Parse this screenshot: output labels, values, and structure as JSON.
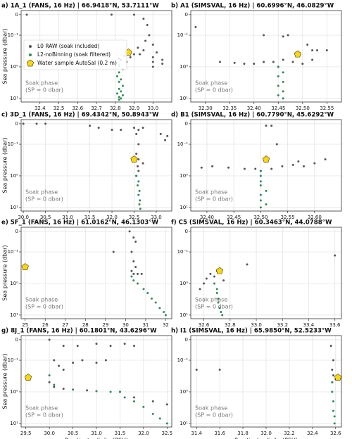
{
  "chart_data": [
    {
      "type": "scatter",
      "title": "a) 1A_1 (FANS, 16 Hz) | 66.9418°N, 53.7111°W",
      "ylabel": "Sea pressure (dbar)",
      "annotation": [
        "Soak phase",
        "(SP = 0 dbar)"
      ],
      "legend": "upper left",
      "yscale": "symlog",
      "linthresh": 0.1,
      "y_inverted": true,
      "grid": true,
      "xlim": [
        32.3,
        33.1
      ],
      "xticks": [
        32.4,
        32.5,
        32.6,
        32.7,
        32.8,
        32.9,
        {
          "value": 33,
          "label": "33.0"
        }
      ],
      "ylim": [
        -0.02,
        13
      ],
      "yticks": [
        0,
        {
          "value": 0.1,
          "label": "10⁻¹"
        },
        {
          "value": 1,
          "label": "10⁰"
        },
        {
          "value": 10,
          "label": "10¹"
        }
      ],
      "series": [
        {
          "name": "L0 RAW (soak included)",
          "color": "#555555",
          "marker": "circle",
          "x": [
            32.33,
            32.78,
            32.9,
            32.95,
            32.97,
            32.98,
            32.96,
            33.0,
            32.92,
            32.95,
            33.02,
            32.9,
            33.0,
            32.85,
            33.05,
            32.82,
            33.0,
            33.05,
            32.93,
            32.88,
            33.0,
            32.86
          ],
          "values": [
            0,
            0,
            0,
            0.02,
            0.05,
            0.1,
            0.15,
            0.2,
            0.25,
            0.3,
            0.35,
            0.4,
            0.5,
            0.45,
            0.6,
            0.55,
            1.0,
            0.8,
            0.4,
            0.5,
            0.7,
            0.7
          ]
        },
        {
          "name": "L2-noBinning (soak filtered)",
          "color": "#2e8b57",
          "marker": "circle",
          "x": [
            32.83,
            32.82,
            32.84,
            32.82,
            32.81,
            32.83,
            32.82,
            32.84,
            32.82,
            32.83,
            32.81,
            32.84,
            32.82,
            32.83,
            32.82
          ],
          "values": [
            0.6,
            0.9,
            1.2,
            1.5,
            2,
            2.5,
            3,
            4,
            5,
            6,
            7,
            8,
            9,
            10,
            11
          ]
        },
        {
          "name": "Water sample AutoSal (0.2 m)",
          "color": "#ffd700",
          "marker": "pentagon",
          "x": [
            32.87
          ],
          "values": [
            0.35
          ]
        }
      ]
    },
    {
      "type": "scatter",
      "title": "b) A1 (SIMSVAL, 16 Hz) | 60.6996°N, 46.0829°W",
      "annotation": [
        "Soak phase",
        "(SP = 0 dbar)"
      ],
      "yscale": "symlog",
      "linthresh": 0.1,
      "y_inverted": true,
      "grid": true,
      "xlim": [
        32.27,
        32.58
      ],
      "xticks": [
        {
          "value": 32.3,
          "label": "32.30"
        },
        32.35,
        {
          "value": 32.4,
          "label": "32.40"
        },
        32.45,
        {
          "value": 32.5,
          "label": "32.50"
        },
        32.55
      ],
      "ylim": [
        -0.02,
        13
      ],
      "yticks": [
        0,
        {
          "value": 0.1,
          "label": "10⁻¹"
        },
        {
          "value": 1,
          "label": "10⁰"
        },
        {
          "value": 10,
          "label": "10¹"
        }
      ],
      "series": [
        {
          "color": "#555555",
          "marker": "circle",
          "x": [
            32.28,
            32.42,
            32.46,
            32.47,
            32.51,
            32.53,
            32.55,
            32.33,
            32.38,
            32.4,
            32.42,
            32.44,
            32.46,
            32.48,
            32.5,
            32.52,
            32.52,
            32.45,
            32.36
          ],
          "values": [
            0.06,
            0.1,
            0.11,
            0.1,
            0.2,
            0.3,
            0.3,
            0.7,
            0.8,
            0.8,
            0.7,
            0.7,
            0.6,
            0.7,
            0.8,
            0.6,
            0.3,
            1.0,
            0.75
          ]
        },
        {
          "color": "#2e8b57",
          "marker": "circle",
          "x": [
            32.45,
            32.46,
            32.45,
            32.46,
            32.45,
            32.46,
            32.45,
            32.46
          ],
          "values": [
            1,
            1.5,
            2,
            3,
            4,
            6,
            8,
            10
          ]
        },
        {
          "color": "#ffd700",
          "marker": "pentagon",
          "x": [
            32.49
          ],
          "values": [
            0.4
          ]
        }
      ]
    },
    {
      "type": "scatter",
      "title": "c) 3D_1 (FANS, 16 Hz) | 69.4342°N, 50.8943°W",
      "ylabel": "Sea pressure (dbar)",
      "annotation": [
        "Soak phase",
        "(SP = 0 dbar)"
      ],
      "yscale": "symlog",
      "linthresh": 0.1,
      "y_inverted": true,
      "grid": true,
      "xlim": [
        29.95,
        33.35
      ],
      "xticks": [
        {
          "value": 30,
          "label": "30.0"
        },
        30.5,
        {
          "value": 31,
          "label": "31.0"
        },
        31.5,
        {
          "value": 32,
          "label": "32.0"
        },
        32.5,
        {
          "value": 33,
          "label": "33.0"
        }
      ],
      "ylim": [
        -0.02,
        13
      ],
      "yticks": [
        0,
        {
          "value": 0.1,
          "label": "10⁻¹"
        },
        {
          "value": 1,
          "label": "10⁰"
        },
        {
          "value": 10,
          "label": "10¹"
        }
      ],
      "series": [
        {
          "color": "#555555",
          "marker": "circle",
          "x": [
            30.0,
            30.3,
            30.5,
            31.5,
            31.7,
            32.0,
            32.2,
            32.5,
            32.6,
            32.7,
            33.1,
            33.2,
            33.25,
            32.55,
            32.6,
            32.55,
            32.6,
            32.58,
            32.6,
            32.55,
            32.7
          ],
          "values": [
            0,
            0,
            0,
            0.01,
            0.02,
            0.03,
            0.03,
            0.02,
            0.03,
            0.02,
            0.05,
            0.08,
            0.06,
            0.05,
            0.1,
            0.2,
            0.3,
            0.5,
            0.7,
            1.0,
            0.4
          ]
        },
        {
          "color": "#2e8b57",
          "marker": "circle",
          "x": [
            32.55,
            32.6,
            32.58,
            32.62,
            32.6,
            32.63,
            32.62,
            32.64
          ],
          "values": [
            1,
            1.5,
            2,
            3,
            4,
            6,
            8,
            11
          ]
        },
        {
          "color": "#ffd700",
          "marker": "pentagon",
          "x": [
            32.5
          ],
          "values": [
            0.3
          ]
        }
      ]
    },
    {
      "type": "scatter",
      "title": "d) B1 (SIMSVAL, 16 Hz) | 60.7790°N, 45.6292°W",
      "annotation": [
        "Soak phase",
        "(SP = 0 dbar)"
      ],
      "yscale": "symlog",
      "linthresh": 0.1,
      "y_inverted": true,
      "grid": true,
      "xlim": [
        32.37,
        32.65
      ],
      "xticks": [
        {
          "value": 32.4,
          "label": "32.40"
        },
        32.45,
        {
          "value": 32.5,
          "label": "32.50"
        },
        32.55,
        {
          "value": 32.6,
          "label": "32.60"
        }
      ],
      "ylim": [
        -0.02,
        13
      ],
      "yticks": [
        0,
        {
          "value": 0.1,
          "label": "10⁻¹"
        },
        {
          "value": 1,
          "label": "10⁰"
        },
        {
          "value": 10,
          "label": "10¹"
        }
      ],
      "series": [
        {
          "color": "#555555",
          "marker": "circle",
          "x": [
            32.51,
            32.52,
            32.53,
            32.39,
            32.41,
            32.44,
            32.47,
            32.49,
            32.52,
            32.54,
            32.56,
            32.58,
            32.6,
            32.62,
            32.5,
            32.57
          ],
          "values": [
            0.01,
            0.01,
            0.1,
            0.55,
            0.5,
            0.55,
            0.6,
            0.6,
            0.6,
            0.5,
            0.45,
            0.5,
            0.4,
            0.3,
            0.7,
            0.35
          ]
        },
        {
          "color": "#2e8b57",
          "marker": "circle",
          "x": [
            32.5,
            32.5,
            32.5,
            32.5,
            32.51,
            32.5,
            32.5,
            32.51,
            32.5
          ],
          "values": [
            0.7,
            1,
            1.5,
            2,
            3,
            4,
            6,
            8,
            10
          ]
        },
        {
          "color": "#ffd700",
          "marker": "pentagon",
          "x": [
            32.51
          ],
          "values": [
            0.3
          ]
        }
      ]
    },
    {
      "type": "scatter",
      "title": "e) 5F_1 (FANS, 16 Hz) | 61.0162°N, 46.1303°W",
      "ylabel": "Sea pressure (dbar)",
      "annotation": [
        "Soak phase",
        "(SP = 0 dbar)"
      ],
      "yscale": "symlog",
      "linthresh": 0.1,
      "y_inverted": true,
      "grid": true,
      "xlim": [
        24.8,
        32.3
      ],
      "xticks": [
        25,
        26,
        27,
        28,
        29,
        30,
        31,
        32
      ],
      "ylim": [
        -0.02,
        13
      ],
      "yticks": [
        0,
        {
          "value": 0.1,
          "label": "10⁻¹"
        },
        {
          "value": 1,
          "label": "10⁰"
        },
        {
          "value": 10,
          "label": "10¹"
        }
      ],
      "series": [
        {
          "color": "#555555",
          "marker": "circle",
          "x": [
            29.4,
            30.2,
            30.4,
            30.5,
            30.3,
            30.4,
            30.5,
            30.3,
            30.6,
            30.8,
            30.4
          ],
          "values": [
            0.1,
            0,
            0.03,
            0.05,
            0.1,
            0.2,
            0.3,
            0.4,
            0.5,
            0.5,
            0.5
          ]
        },
        {
          "color": "#2e8b57",
          "marker": "circle",
          "x": [
            30.3,
            30.4,
            30.6,
            30.9,
            31.1,
            31.3,
            31.5,
            31.7,
            31.9,
            32.0
          ],
          "values": [
            0.6,
            0.8,
            1.0,
            1.5,
            2,
            3,
            4,
            6,
            8,
            10
          ]
        },
        {
          "color": "#ffd700",
          "marker": "pentagon",
          "x": [
            25.0
          ],
          "values": [
            0.3
          ]
        }
      ]
    },
    {
      "type": "scatter",
      "title": "f) C5 (SIMSVAL, 16 Hz) | 60.3463°N, 44.0788°W",
      "annotation": [
        "Soak phase",
        "(SP = 0 dbar)"
      ],
      "yscale": "symlog",
      "linthresh": 0.1,
      "y_inverted": true,
      "grid": true,
      "xlim": [
        32.5,
        33.65
      ],
      "xticks": [
        32.6,
        32.8,
        {
          "value": 33,
          "label": "33.0"
        },
        33.2,
        33.4,
        33.6
      ],
      "ylim": [
        -0.02,
        13
      ],
      "yticks": [
        0,
        {
          "value": 0.1,
          "label": "10⁻¹"
        },
        {
          "value": 1,
          "label": "10⁰"
        },
        {
          "value": 10,
          "label": "10¹"
        }
      ],
      "series": [
        {
          "color": "#555555",
          "marker": "circle",
          "x": [
            32.57,
            32.6,
            32.62,
            32.65,
            32.7,
            32.75,
            32.93,
            33.6,
            32.68
          ],
          "values": [
            1.5,
            1.0,
            0.7,
            0.5,
            0.4,
            0.8,
            0.25,
            0.13,
            0.6
          ]
        },
        {
          "color": "#2e8b57",
          "marker": "circle",
          "x": [
            32.68,
            32.7,
            32.7,
            32.71,
            32.71,
            32.72,
            32.73,
            32.74
          ],
          "values": [
            1,
            1.5,
            2,
            3,
            4,
            6,
            8,
            10
          ]
        },
        {
          "color": "#ffd700",
          "marker": "pentagon",
          "x": [
            32.72
          ],
          "values": [
            0.4
          ]
        }
      ]
    },
    {
      "type": "scatter",
      "title": "g) 8J_1 (FANS, 16 Hz) | 60.1801°N, 43.6296°W",
      "ylabel": "Sea pressure (dbar)",
      "xlabel": "Practical salinity (PSU)",
      "annotation": [
        "Soak phase",
        "(SP = 0 dbar)"
      ],
      "yscale": "symlog",
      "linthresh": 0.1,
      "y_inverted": true,
      "grid": true,
      "xlim": [
        29.4,
        32.6
      ],
      "xticks": [
        29.5,
        {
          "value": 30,
          "label": "30.0"
        },
        30.5,
        {
          "value": 31,
          "label": "31.0"
        },
        31.5,
        {
          "value": 32,
          "label": "32.0"
        },
        32.5
      ],
      "ylim": [
        -0.02,
        13
      ],
      "yticks": [
        0,
        {
          "value": 0.1,
          "label": "10⁻¹"
        },
        {
          "value": 1,
          "label": "10⁰"
        },
        {
          "value": 10,
          "label": "10¹"
        }
      ],
      "series": [
        {
          "color": "#555555",
          "marker": "circle",
          "x": [
            30.0,
            30.1,
            30.2,
            30.3,
            30.5,
            30.7,
            31.0,
            31.2,
            30.3,
            30.6,
            31.0,
            31.3,
            31.6,
            31.8,
            30.0,
            30.1,
            30.3,
            30.8,
            31.5,
            31.8,
            32.2,
            32.5
          ],
          "values": [
            0,
            0.1,
            0.15,
            0.2,
            0.12,
            0.1,
            0.12,
            0.1,
            0.03,
            0.03,
            0.02,
            0.03,
            0.02,
            0.03,
            0.5,
            0.7,
            0.8,
            0.9,
            1.0,
            1.5,
            2,
            2.5
          ]
        },
        {
          "color": "#2e8b57",
          "marker": "circle",
          "x": [
            30.0,
            30.1,
            30.5,
            31.0,
            31.3,
            31.5,
            31.6,
            31.8,
            32.0,
            32.2,
            32.35,
            32.5
          ],
          "values": [
            0.3,
            0.6,
            0.85,
            0.95,
            1.0,
            1.0,
            1.5,
            2,
            3,
            5,
            7,
            10
          ]
        },
        {
          "color": "#ffd700",
          "marker": "pentagon",
          "x": [
            29.55
          ],
          "values": [
            0.35
          ]
        }
      ]
    },
    {
      "type": "scatter",
      "title": "h) I1 (SIMSVAL, 16 Hz) | 65.9850°N, 52.5233°W",
      "xlabel": "Practical salinity (PSU)",
      "annotation": [
        "Soak phase",
        "(SP = 0 dbar)"
      ],
      "yscale": "symlog",
      "linthresh": 0.1,
      "y_inverted": true,
      "grid": true,
      "xlim": [
        31.35,
        32.65
      ],
      "xticks": [
        31.4,
        31.6,
        31.8,
        {
          "value": 32,
          "label": "32.0"
        },
        32.2,
        32.4,
        32.6
      ],
      "ylim": [
        -0.02,
        13
      ],
      "yticks": [
        0,
        {
          "value": 0.1,
          "label": "10⁻¹"
        },
        {
          "value": 1,
          "label": "10⁰"
        },
        {
          "value": 10,
          "label": "10¹"
        }
      ],
      "series": [
        {
          "color": "#555555",
          "marker": "circle",
          "x": [
            31.4,
            31.6,
            32.56,
            32.58,
            32.57,
            32.58,
            32.6,
            32.57
          ],
          "values": [
            0.2,
            0.2,
            0.03,
            0.1,
            0.2,
            0.3,
            0.4,
            0.5
          ]
        },
        {
          "color": "#2e8b57",
          "marker": "circle",
          "x": [
            32.57,
            32.57,
            32.58,
            32.58,
            32.59,
            32.59
          ],
          "values": [
            0.5,
            1,
            2,
            4,
            6,
            10
          ]
        },
        {
          "color": "#ffd700",
          "marker": "pentagon",
          "x": [
            32.62
          ],
          "values": [
            0.35
          ]
        }
      ]
    }
  ]
}
